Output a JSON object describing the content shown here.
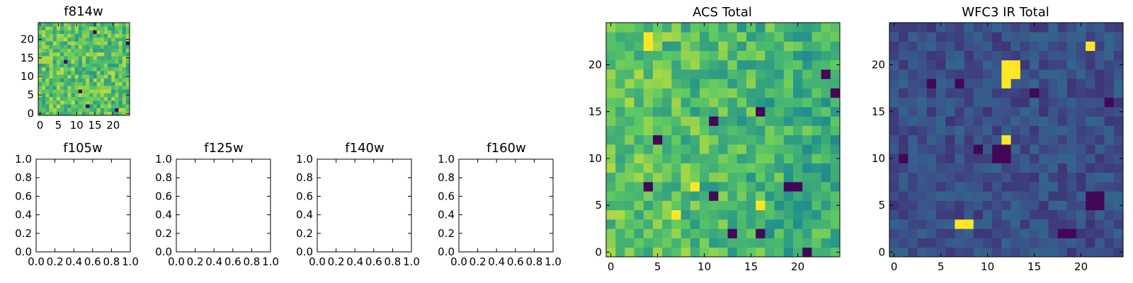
{
  "figure": {
    "background": "#ffffff",
    "colormap": "viridis",
    "colormap_stops": [
      "#440154",
      "#3b528b",
      "#21908d",
      "#5ec962",
      "#fde725"
    ]
  },
  "chart_data": [
    {
      "id": "f814w",
      "type": "heatmap",
      "title": "f814w",
      "grid_size": [
        25,
        25
      ],
      "xlim": [
        -0.5,
        24.5
      ],
      "ylim": [
        -0.5,
        24.5
      ],
      "xticks": [
        0,
        5,
        10,
        15,
        20
      ],
      "xtick_labels": [
        "0",
        "5",
        "10",
        "15",
        "20"
      ],
      "yticks": [
        0,
        5,
        10,
        15,
        20
      ],
      "ytick_labels": [
        "0",
        "5",
        "10",
        "15",
        "20"
      ],
      "origin": "lower",
      "colormap": "viridis",
      "description_of_values": "Noisy intensity field dominated by green–yellow levels with a few dark pixels",
      "value_level_mean": 0.72,
      "value_spread": 0.18,
      "hot_pixels": [],
      "dark_pixels": [
        [
          24,
          19
        ],
        [
          11,
          6
        ],
        [
          13,
          2
        ],
        [
          7,
          14
        ],
        [
          21,
          1
        ],
        [
          15,
          22
        ]
      ]
    },
    {
      "id": "f105w",
      "type": "heatmap",
      "title": "f105w",
      "empty": true,
      "xlim": [
        0.0,
        1.0
      ],
      "ylim": [
        0.0,
        1.0
      ],
      "xticks": [
        0.0,
        0.2,
        0.4,
        0.6,
        0.8,
        1.0
      ],
      "xtick_labels": [
        "0.0",
        "0.2",
        "0.4",
        "0.6",
        "0.8",
        "1.0"
      ],
      "yticks": [
        0.0,
        0.2,
        0.4,
        0.6,
        0.8,
        1.0
      ],
      "ytick_labels": [
        "0.0",
        "0.2",
        "0.4",
        "0.6",
        "0.8",
        "1.0"
      ]
    },
    {
      "id": "f125w",
      "type": "heatmap",
      "title": "f125w",
      "empty": true,
      "xlim": [
        0.0,
        1.0
      ],
      "ylim": [
        0.0,
        1.0
      ],
      "xticks": [
        0.0,
        0.2,
        0.4,
        0.6,
        0.8,
        1.0
      ],
      "xtick_labels": [
        "0.0",
        "0.2",
        "0.4",
        "0.6",
        "0.8",
        "1.0"
      ],
      "yticks": [
        0.0,
        0.2,
        0.4,
        0.6,
        0.8,
        1.0
      ],
      "ytick_labels": [
        "0.0",
        "0.2",
        "0.4",
        "0.6",
        "0.8",
        "1.0"
      ]
    },
    {
      "id": "f140w",
      "type": "heatmap",
      "title": "f140w",
      "empty": true,
      "xlim": [
        0.0,
        1.0
      ],
      "ylim": [
        0.0,
        1.0
      ],
      "xticks": [
        0.0,
        0.2,
        0.4,
        0.6,
        0.8,
        1.0
      ],
      "xtick_labels": [
        "0.0",
        "0.2",
        "0.4",
        "0.6",
        "0.8",
        "1.0"
      ],
      "yticks": [
        0.0,
        0.2,
        0.4,
        0.6,
        0.8,
        1.0
      ],
      "ytick_labels": [
        "0.0",
        "0.2",
        "0.4",
        "0.6",
        "0.8",
        "1.0"
      ]
    },
    {
      "id": "f160w",
      "type": "heatmap",
      "title": "f160w",
      "empty": true,
      "xlim": [
        0.0,
        1.0
      ],
      "ylim": [
        0.0,
        1.0
      ],
      "xticks": [
        0.0,
        0.2,
        0.4,
        0.6,
        0.8,
        1.0
      ],
      "xtick_labels": [
        "0.0",
        "0.2",
        "0.4",
        "0.6",
        "0.8",
        "1.0"
      ],
      "yticks": [
        0.0,
        0.2,
        0.4,
        0.6,
        0.8,
        1.0
      ],
      "ytick_labels": [
        "0.0",
        "0.2",
        "0.4",
        "0.6",
        "0.8",
        "1.0"
      ]
    },
    {
      "id": "acs_total",
      "type": "heatmap",
      "title": "ACS Total",
      "grid_size": [
        25,
        25
      ],
      "xlim": [
        -0.5,
        24.5
      ],
      "ylim": [
        -0.5,
        24.5
      ],
      "xticks": [
        0,
        5,
        10,
        15,
        20
      ],
      "xtick_labels": [
        "0",
        "5",
        "10",
        "15",
        "20"
      ],
      "yticks": [
        0,
        5,
        10,
        15,
        20
      ],
      "ytick_labels": [
        "0",
        "5",
        "10",
        "15",
        "20"
      ],
      "origin": "lower",
      "colormap": "viridis",
      "description_of_values": "Green–yellow field, brighter toward the left columns, with scattered dark purple pixels",
      "value_level_mean": 0.68,
      "value_spread": 0.16,
      "hot_pixels": [
        [
          4,
          23
        ],
        [
          4,
          22
        ],
        [
          7,
          4
        ],
        [
          16,
          5
        ],
        [
          9,
          7
        ]
      ],
      "dark_pixels": [
        [
          11,
          14
        ],
        [
          16,
          15
        ],
        [
          23,
          19
        ],
        [
          24,
          17
        ],
        [
          19,
          7
        ],
        [
          20,
          7
        ],
        [
          4,
          7
        ],
        [
          21,
          0
        ],
        [
          16,
          2
        ],
        [
          13,
          2
        ],
        [
          11,
          6
        ],
        [
          5,
          12
        ]
      ]
    },
    {
      "id": "wfc3_ir_total",
      "type": "heatmap",
      "title": "WFC3 IR Total",
      "grid_size": [
        25,
        25
      ],
      "xlim": [
        -0.5,
        24.5
      ],
      "ylim": [
        -0.5,
        24.5
      ],
      "xticks": [
        0,
        5,
        10,
        15,
        20
      ],
      "xtick_labels": [
        "0",
        "5",
        "10",
        "15",
        "20"
      ],
      "yticks": [
        0,
        5,
        10,
        15,
        20
      ],
      "ytick_labels": [
        "0",
        "5",
        "10",
        "15",
        "20"
      ],
      "origin": "lower",
      "colormap": "viridis",
      "description_of_values": "Mostly dark blue-purple background with a few bright yellow sources",
      "value_level_mean": 0.24,
      "value_spread": 0.09,
      "hot_pixels": [
        [
          12,
          20
        ],
        [
          13,
          20
        ],
        [
          12,
          19
        ],
        [
          13,
          19
        ],
        [
          12,
          18
        ],
        [
          12,
          12
        ],
        [
          21,
          22
        ],
        [
          7,
          3
        ],
        [
          8,
          3
        ]
      ],
      "dark_pixels": [
        [
          11,
          11
        ],
        [
          12,
          11
        ],
        [
          11,
          10
        ],
        [
          12,
          10
        ],
        [
          21,
          6
        ],
        [
          22,
          6
        ],
        [
          21,
          5
        ],
        [
          22,
          5
        ],
        [
          18,
          2
        ],
        [
          19,
          2
        ],
        [
          4,
          18
        ],
        [
          7,
          18
        ],
        [
          15,
          17
        ],
        [
          23,
          16
        ],
        [
          9,
          11
        ],
        [
          1,
          10
        ]
      ]
    }
  ]
}
